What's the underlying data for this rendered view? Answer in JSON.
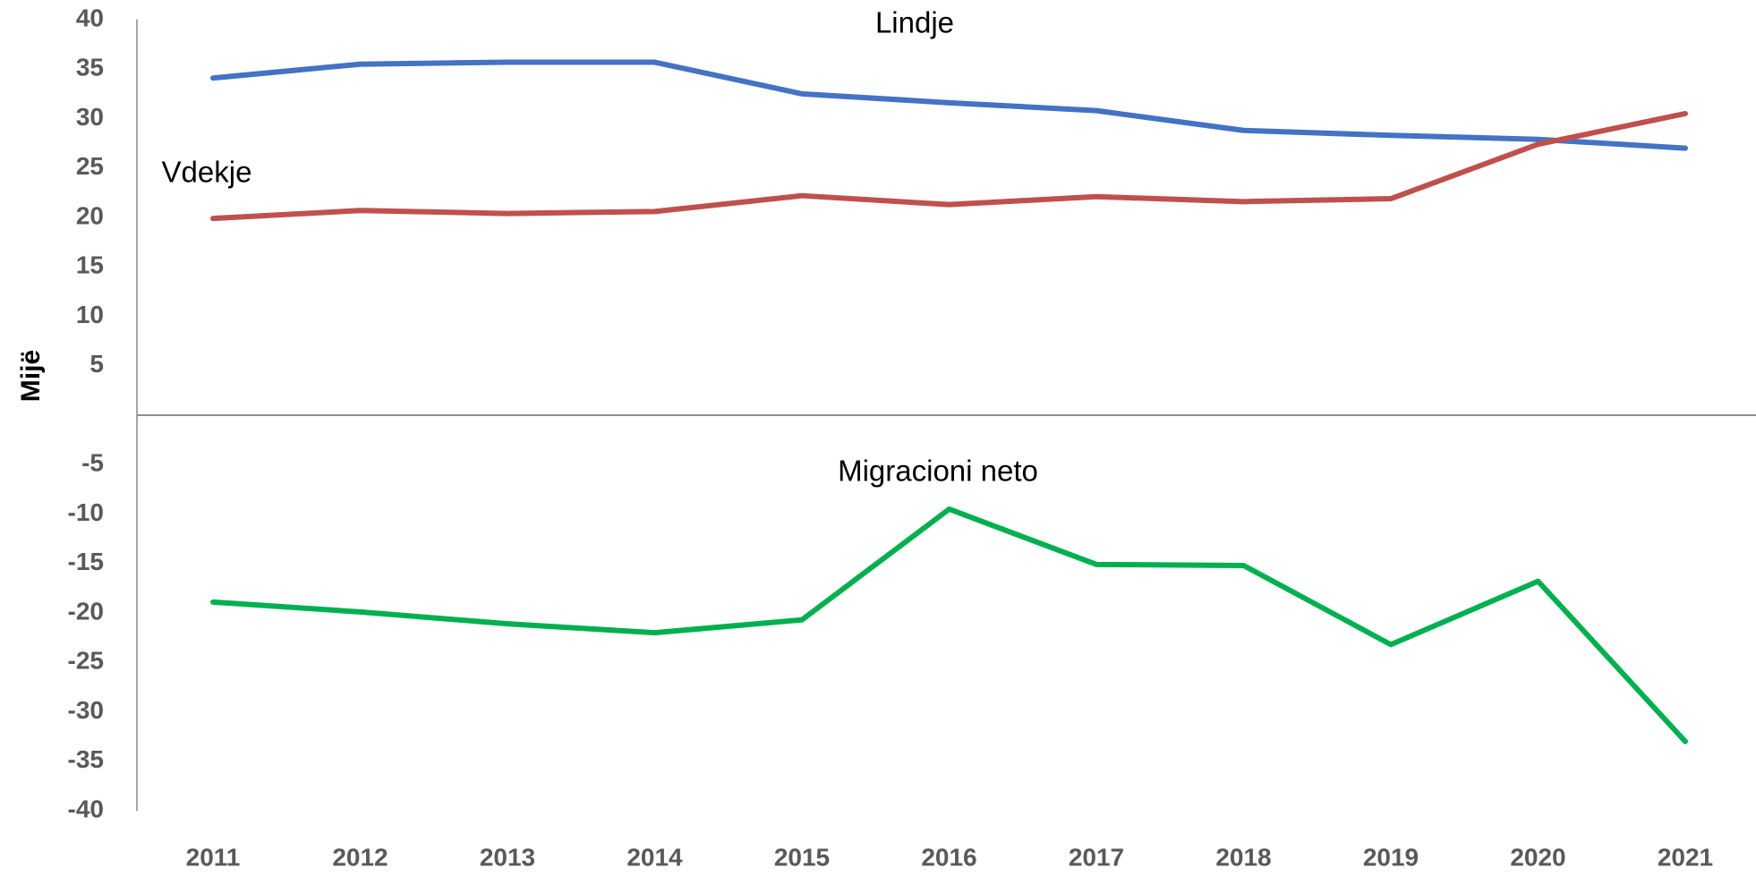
{
  "chart_data": {
    "type": "line",
    "y_label": "Mijë",
    "categories": [
      "2011",
      "2012",
      "2013",
      "2014",
      "2015",
      "2016",
      "2017",
      "2018",
      "2019",
      "2020",
      "2021"
    ],
    "series": [
      {
        "name": "Lindje",
        "color": "#4472c4",
        "values": [
          34.1,
          35.5,
          35.7,
          35.7,
          32.5,
          31.6,
          30.8,
          28.8,
          28.3,
          27.9,
          27.0
        ]
      },
      {
        "name": "Vdekje",
        "color": "#c0504d",
        "values": [
          19.9,
          20.7,
          20.4,
          20.6,
          22.2,
          21.3,
          22.1,
          21.6,
          21.9,
          27.4,
          30.5
        ]
      },
      {
        "name": "Migracioni neto",
        "color": "#00b050",
        "values": [
          -18.9,
          -19.9,
          -21.1,
          -22.0,
          -20.7,
          -9.5,
          -15.1,
          -15.2,
          -23.2,
          -16.8,
          -33.0
        ]
      }
    ],
    "ylim": [
      -40,
      40
    ],
    "yticks": [
      40,
      35,
      30,
      25,
      20,
      15,
      10,
      5,
      -5,
      -10,
      -15,
      -20,
      -25,
      -30,
      -35,
      -40
    ],
    "grid": false
  }
}
